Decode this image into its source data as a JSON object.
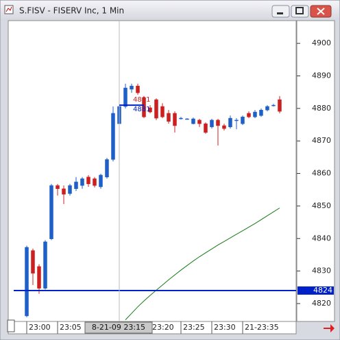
{
  "window_title": "S.FISV - FISERV Inc, 1 Min",
  "chart_data": {
    "type": "candlestick",
    "open": [
      4816.2,
      4836.3,
      4831.4,
      4824.7,
      4839.9,
      4856.3,
      4855.3,
      4853.8,
      4855.3,
      4856.3,
      4858.9,
      4858.4,
      4855.9,
      4858.9,
      4864.3,
      4875.3,
      4880.6,
      4885.9,
      4886.9,
      4883.3,
      4880.2,
      4882.7,
      4880.6,
      4878.5,
      4878.5,
      4877.0,
      4876.8,
      4875.3,
      4876.4,
      4875.3,
      4874.3,
      4876.4,
      4874.7,
      4874.3,
      4876.4,
      4875.3,
      4878.5,
      4877.4,
      4877.8,
      4879.5,
      4881.0,
      4882.7
    ],
    "high": [
      4837.8,
      4836.9,
      4832.1,
      4839.5,
      4856.8,
      4856.8,
      4856.3,
      4856.8,
      4858.9,
      4858.9,
      4859.5,
      4858.9,
      4859.9,
      4864.8,
      4880.6,
      4883.8,
      4887.6,
      4887.6,
      4887.6,
      4883.8,
      4881.0,
      4883.1,
      4881.6,
      4879.5,
      4879.1,
      4877.4,
      4877.0,
      4877.2,
      4876.8,
      4875.7,
      4876.8,
      4876.8,
      4875.3,
      4877.8,
      4877.0,
      4877.8,
      4879.1,
      4879.5,
      4880.0,
      4881.0,
      4881.4,
      4883.8
    ],
    "low": [
      4815.8,
      4825.7,
      4823.0,
      4824.3,
      4839.5,
      4853.2,
      4850.6,
      4853.2,
      4854.6,
      4855.3,
      4855.9,
      4855.7,
      4855.3,
      4858.4,
      4863.7,
      4875.3,
      4880.0,
      4884.8,
      4884.2,
      4877.0,
      4878.5,
      4876.4,
      4877.0,
      4875.3,
      4872.6,
      4876.6,
      4876.6,
      4875.1,
      4874.3,
      4872.2,
      4873.8,
      4868.6,
      4873.2,
      4873.8,
      4873.6,
      4874.9,
      4877.0,
      4877.0,
      4877.4,
      4879.1,
      4880.6,
      4878.5
    ],
    "close": [
      4837.3,
      4829.3,
      4824.7,
      4839.0,
      4856.3,
      4855.3,
      4853.6,
      4856.3,
      4857.4,
      4858.4,
      4856.8,
      4856.3,
      4859.5,
      4864.3,
      4878.5,
      4880.6,
      4886.3,
      4886.9,
      4884.8,
      4877.4,
      4878.9,
      4877.0,
      4877.4,
      4876.0,
      4874.7,
      4877.0,
      4876.8,
      4876.8,
      4875.3,
      4872.6,
      4876.4,
      4874.7,
      4873.8,
      4877.0,
      4876.4,
      4877.4,
      4877.4,
      4878.9,
      4879.5,
      4880.6,
      4881.0,
      4879.1
    ],
    "up_color": "#1f5fc8",
    "down_color": "#cc2020",
    "ma": {
      "color": "#167a16",
      "values": [
        null,
        null,
        null,
        null,
        null,
        null,
        null,
        null,
        null,
        null,
        null,
        null,
        null,
        null,
        null,
        null,
        4815.0,
        4817.0,
        4819.0,
        4820.8,
        4822.5,
        4824.1,
        4825.7,
        4827.3,
        4828.8,
        4830.3,
        4831.7,
        4833.1,
        4834.4,
        4835.6,
        4836.8,
        4838.0,
        4839.1,
        4840.2,
        4841.3,
        4842.4,
        4843.5,
        4844.6,
        4845.8,
        4847.0,
        4848.2,
        4849.4
      ]
    },
    "level": {
      "value": 4824,
      "color": "#0020c8"
    },
    "cursor": {
      "x": 15,
      "label": "8-21-09 23:15",
      "values": [
        4881,
        4881
      ]
    },
    "xlim": [
      -3,
      43.67
    ],
    "xticks": [
      {
        "value": 0,
        "label": "23:00"
      },
      {
        "value": 5,
        "label": "23:05"
      },
      {
        "value": 20,
        "label": "23:20"
      },
      {
        "value": 25,
        "label": "23:25"
      },
      {
        "value": 30,
        "label": "23:30"
      },
      {
        "value": 35,
        "label": "21-23:35"
      }
    ],
    "ylim": [
      4814.5,
      4907
    ],
    "yticks": [
      4820,
      4830,
      4840,
      4850,
      4860,
      4870,
      4880,
      4890,
      4900
    ]
  }
}
